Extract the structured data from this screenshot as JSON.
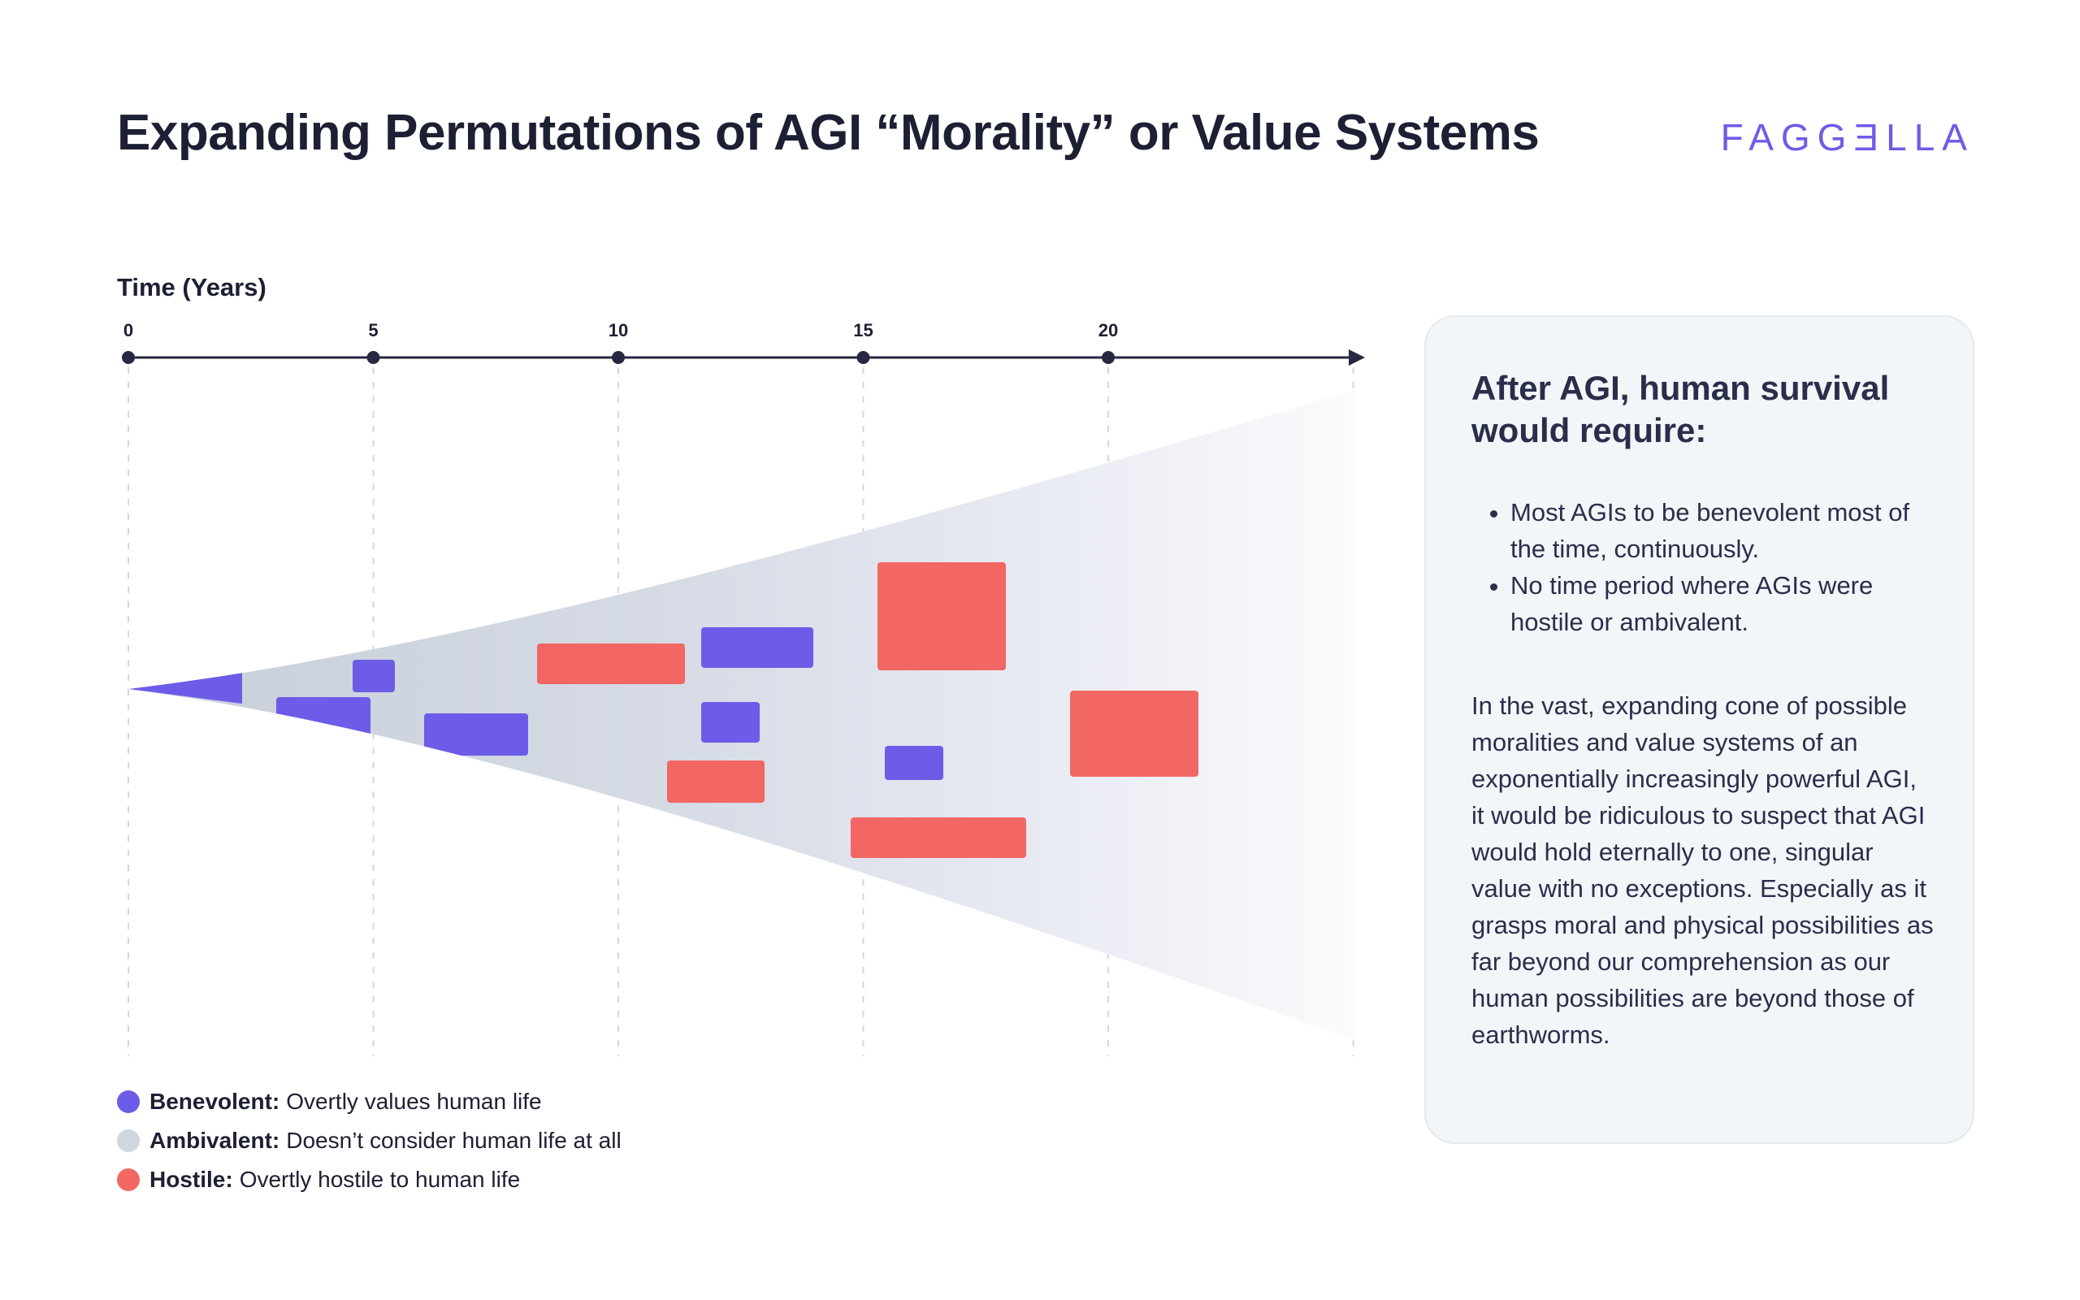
{
  "title": "Expanding Permutations of AGI “Morality” or Value Systems",
  "brand": "FAGGƎLLA",
  "axis": {
    "title": "Time (Years)",
    "ticks": [
      0,
      5,
      10,
      15,
      20
    ],
    "max": 25
  },
  "legend": [
    {
      "term": "Benevolent:",
      "description": "Overtly values human life",
      "color": "#6c5ce7"
    },
    {
      "term": "Ambivalent:",
      "description": "Doesn’t consider human life at all",
      "color": "#cfd6de"
    },
    {
      "term": "Hostile:",
      "description": "Overtly hostile to human life",
      "color": "#f26763"
    }
  ],
  "colors": {
    "benevolent": "#6c5ce7",
    "ambivalent": "#cfd6de",
    "hostile": "#f26763",
    "axis": "#262842"
  },
  "panel": {
    "heading": "After AGI, human survival would require:",
    "bullets": [
      "Most AGIs to be benevolent most of the time, continuously.",
      "No time period where AGIs were hostile or ambivalent."
    ],
    "body": "In the vast, expanding cone of possible moralities and value systems of an exponentially increasingly powerful AGI, it would be ridiculous to suspect that AGI would hold eternally to one, singular value with no exceptions. Especially as it grasps moral and physical possibilities as far beyond our comprehension as our human possibilities are beyond those of earthworms."
  }
}
